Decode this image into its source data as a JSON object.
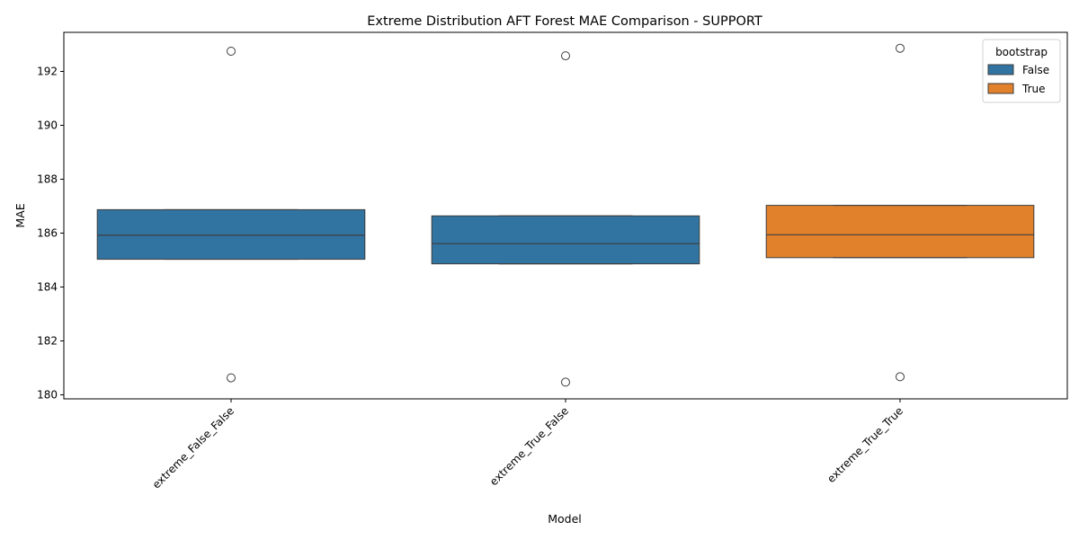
{
  "chart_data": {
    "type": "boxplot",
    "title": "Extreme Distribution AFT Forest MAE Comparison - SUPPORT",
    "xlabel": "Model",
    "ylabel": "MAE",
    "ylim": [
      179.85,
      193.45
    ],
    "yticks": [
      180,
      182,
      184,
      186,
      188,
      190,
      192
    ],
    "categories": [
      "extreme_False_False",
      "extreme_True_False",
      "extreme_True_True"
    ],
    "legend": {
      "title": "bootstrap",
      "position": "top-right",
      "entries": [
        {
          "label": "False",
          "color": "#3274a1"
        },
        {
          "label": "True",
          "color": "#e1812c"
        }
      ]
    },
    "boxes": [
      {
        "category": "extreme_False_False",
        "bootstrap": "False",
        "color": "#3274a1",
        "q1": 185.03,
        "median": 185.92,
        "q3": 186.87,
        "whisker_low": 185.03,
        "whisker_high": 186.87,
        "outliers": [
          192.75,
          180.63
        ]
      },
      {
        "category": "extreme_True_False",
        "bootstrap": "False",
        "color": "#3274a1",
        "q1": 184.86,
        "median": 185.61,
        "q3": 186.64,
        "whisker_low": 184.86,
        "whisker_high": 186.64,
        "outliers": [
          192.58,
          180.47
        ]
      },
      {
        "category": "extreme_True_True",
        "bootstrap": "True",
        "color": "#e1812c",
        "q1": 185.09,
        "median": 185.94,
        "q3": 187.03,
        "whisker_low": 185.09,
        "whisker_high": 187.03,
        "outliers": [
          192.86,
          180.67
        ]
      }
    ]
  }
}
